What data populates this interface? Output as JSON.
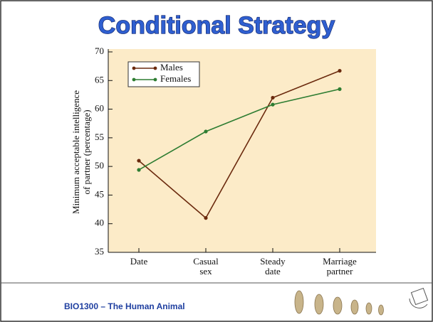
{
  "chart_data": {
    "type": "line",
    "title": "Conditional Strategy",
    "y_label": [
      "Minimum acceptable intelligence",
      "of partner (percentage)"
    ],
    "categories": [
      "Date",
      "Casual sex",
      "Steady date",
      "Marriage partner"
    ],
    "series": [
      {
        "name": "Males",
        "color": "#6b2a0e",
        "values": [
          51,
          41,
          62,
          66.7
        ]
      },
      {
        "name": "Females",
        "color": "#2e7d32",
        "values": [
          49.4,
          56.1,
          60.8,
          63.5
        ]
      }
    ],
    "ylim": [
      35,
      70
    ],
    "yticks": [
      35,
      40,
      45,
      50,
      55,
      60,
      65,
      70
    ],
    "legend": "upper left"
  },
  "footer": "BIO1300 – The Human Animal"
}
